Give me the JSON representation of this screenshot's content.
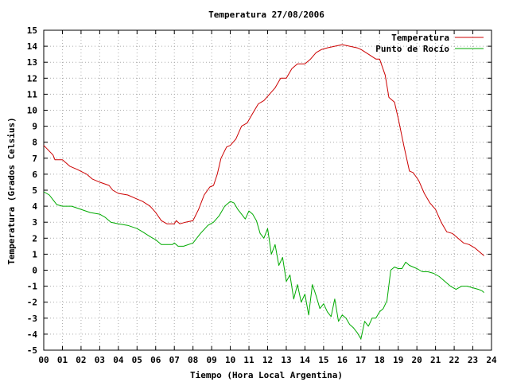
{
  "chart_data": {
    "type": "line",
    "title": "Temperatura 27/08/2006",
    "xlabel": "Tiempo (Hora Local Argentina)",
    "ylabel": "Temperatura (Grados Celsius)",
    "xlim": [
      0,
      24
    ],
    "ylim": [
      -5,
      15
    ],
    "x_ticks": [
      "00",
      "01",
      "02",
      "03",
      "04",
      "05",
      "06",
      "07",
      "08",
      "09",
      "10",
      "11",
      "12",
      "13",
      "14",
      "15",
      "16",
      "17",
      "18",
      "19",
      "20",
      "21",
      "22",
      "23",
      "24"
    ],
    "y_ticks": [
      "-5",
      "-4",
      "-3",
      "-2",
      "-1",
      "0",
      "1",
      "2",
      "3",
      "4",
      "5",
      "6",
      "7",
      "8",
      "9",
      "10",
      "11",
      "12",
      "13",
      "14",
      "15"
    ],
    "grid": true,
    "legend": "top-right",
    "series": [
      {
        "name": "Temperatura",
        "color": "#cc0000",
        "x": [
          0,
          0.5,
          0.6,
          1.0,
          1.4,
          1.8,
          2.3,
          2.6,
          3.0,
          3.5,
          3.7,
          4.0,
          4.5,
          4.9,
          5.3,
          5.7,
          6.0,
          6.3,
          6.6,
          7.0,
          7.1,
          7.3,
          7.6,
          8.0,
          8.3,
          8.6,
          8.9,
          9.1,
          9.3,
          9.5,
          9.8,
          10.0,
          10.3,
          10.6,
          10.9,
          11.2,
          11.5,
          11.8,
          12.1,
          12.4,
          12.7,
          13.0,
          13.3,
          13.6,
          14.0,
          14.3,
          14.6,
          14.9,
          15.2,
          15.6,
          16.0,
          16.4,
          16.8,
          17.0,
          17.4,
          17.8,
          18.0,
          18.3,
          18.5,
          18.8,
          19.0,
          19.3,
          19.6,
          19.8,
          20.1,
          20.4,
          20.7,
          21.0,
          21.3,
          21.6,
          21.9,
          22.2,
          22.5,
          22.8,
          23.1,
          23.3,
          23.5,
          23.6
        ],
        "values": [
          7.8,
          7.2,
          6.9,
          6.9,
          6.5,
          6.3,
          6.0,
          5.7,
          5.5,
          5.3,
          5.0,
          4.8,
          4.7,
          4.5,
          4.3,
          4.0,
          3.6,
          3.1,
          2.9,
          2.9,
          3.1,
          2.9,
          3.0,
          3.1,
          3.8,
          4.7,
          5.2,
          5.3,
          6.0,
          7.0,
          7.7,
          7.8,
          8.2,
          9.0,
          9.2,
          9.8,
          10.4,
          10.6,
          11.0,
          11.4,
          12.0,
          12.0,
          12.6,
          12.9,
          12.9,
          13.2,
          13.6,
          13.8,
          13.9,
          14.0,
          14.1,
          14.0,
          13.9,
          13.8,
          13.5,
          13.2,
          13.2,
          12.2,
          10.8,
          10.5,
          9.5,
          7.8,
          6.2,
          6.1,
          5.6,
          4.8,
          4.2,
          3.8,
          3.0,
          2.4,
          2.3,
          2.0,
          1.7,
          1.6,
          1.4,
          1.2,
          1.0,
          0.9
        ]
      },
      {
        "name": "Punto de Rocío",
        "color": "#00aa00",
        "x": [
          0,
          0.3,
          0.5,
          0.7,
          1.0,
          1.5,
          2.0,
          2.5,
          3.0,
          3.3,
          3.6,
          4.0,
          4.5,
          5.0,
          5.3,
          5.7,
          6.0,
          6.3,
          6.6,
          6.9,
          7.0,
          7.2,
          7.5,
          8.0,
          8.4,
          8.8,
          9.1,
          9.4,
          9.7,
          10.0,
          10.2,
          10.4,
          10.6,
          10.8,
          11.0,
          11.2,
          11.4,
          11.6,
          11.8,
          12.0,
          12.2,
          12.4,
          12.6,
          12.8,
          13.0,
          13.2,
          13.4,
          13.6,
          13.8,
          14.0,
          14.2,
          14.4,
          14.6,
          14.8,
          15.0,
          15.2,
          15.4,
          15.6,
          15.8,
          16.0,
          16.2,
          16.4,
          16.6,
          16.8,
          17.0,
          17.2,
          17.4,
          17.6,
          17.8,
          18.0,
          18.2,
          18.4,
          18.6,
          18.8,
          19.0,
          19.2,
          19.4,
          19.6,
          19.8,
          20.0,
          20.3,
          20.6,
          20.9,
          21.2,
          21.5,
          21.8,
          22.1,
          22.4,
          22.7,
          23.0,
          23.3,
          23.5,
          23.6
        ],
        "values": [
          4.9,
          4.7,
          4.4,
          4.1,
          4.0,
          4.0,
          3.8,
          3.6,
          3.5,
          3.3,
          3.0,
          2.9,
          2.8,
          2.6,
          2.4,
          2.1,
          1.9,
          1.6,
          1.6,
          1.6,
          1.7,
          1.5,
          1.5,
          1.7,
          2.3,
          2.8,
          3.0,
          3.4,
          4.0,
          4.3,
          4.2,
          3.8,
          3.5,
          3.2,
          3.7,
          3.5,
          3.1,
          2.3,
          2.0,
          2.6,
          1.0,
          1.6,
          0.3,
          0.8,
          -0.7,
          -0.3,
          -1.8,
          -0.9,
          -2.0,
          -1.5,
          -2.8,
          -0.9,
          -1.6,
          -2.4,
          -2.1,
          -2.6,
          -2.9,
          -1.8,
          -3.2,
          -2.8,
          -3.0,
          -3.4,
          -3.6,
          -3.9,
          -4.3,
          -3.2,
          -3.5,
          -3.0,
          -3.0,
          -2.6,
          -2.4,
          -1.9,
          0.0,
          0.2,
          0.1,
          0.1,
          0.5,
          0.3,
          0.2,
          0.1,
          -0.1,
          -0.1,
          -0.2,
          -0.4,
          -0.7,
          -1.0,
          -1.2,
          -1.0,
          -1.0,
          -1.1,
          -1.2,
          -1.3,
          -1.4
        ]
      }
    ]
  }
}
